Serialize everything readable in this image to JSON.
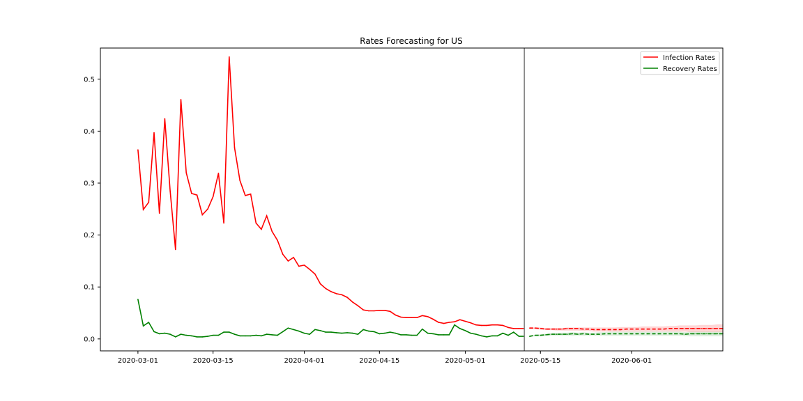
{
  "chart_data": {
    "type": "line",
    "title": "Rates Forecasting for US",
    "xlabel": "",
    "ylabel": "",
    "x_range": [
      "2020-02-23",
      "2020-06-18"
    ],
    "ylim": [
      -0.023,
      0.56
    ],
    "x_ticks": [
      "2020-03-01",
      "2020-03-15",
      "2020-04-01",
      "2020-04-15",
      "2020-05-01",
      "2020-05-15",
      "2020-06-01"
    ],
    "y_ticks": [
      0.0,
      0.1,
      0.2,
      0.3,
      0.4,
      0.5
    ],
    "y_tick_labels": [
      "0.0",
      "0.1",
      "0.2",
      "0.3",
      "0.4",
      "0.5"
    ],
    "grid": false,
    "legend_position": "top-right",
    "forecast_start_marker": "2020-05-12",
    "series": [
      {
        "name": "Infection Rates",
        "color": "#ff0000",
        "style": "solid",
        "start_date": "2020-03-01",
        "values": [
          0.364,
          0.249,
          0.263,
          0.397,
          0.242,
          0.424,
          0.285,
          0.172,
          0.461,
          0.32,
          0.28,
          0.277,
          0.239,
          0.25,
          0.274,
          0.319,
          0.223,
          0.543,
          0.368,
          0.305,
          0.276,
          0.279,
          0.223,
          0.211,
          0.237,
          0.207,
          0.19,
          0.163,
          0.15,
          0.157,
          0.14,
          0.142,
          0.134,
          0.125,
          0.106,
          0.097,
          0.091,
          0.087,
          0.085,
          0.08,
          0.071,
          0.064,
          0.056,
          0.054,
          0.054,
          0.055,
          0.055,
          0.053,
          0.046,
          0.042,
          0.041,
          0.041,
          0.041,
          0.045,
          0.043,
          0.038,
          0.032,
          0.03,
          0.032,
          0.033,
          0.037,
          0.034,
          0.031,
          0.027,
          0.026,
          0.026,
          0.027,
          0.027,
          0.026,
          0.022,
          0.02,
          0.02,
          0.02
        ]
      },
      {
        "name": "Recovery Rates",
        "color": "#008000",
        "style": "solid",
        "start_date": "2020-03-01",
        "values": [
          0.076,
          0.025,
          0.032,
          0.014,
          0.01,
          0.011,
          0.009,
          0.004,
          0.009,
          0.007,
          0.006,
          0.004,
          0.004,
          0.005,
          0.007,
          0.007,
          0.013,
          0.013,
          0.009,
          0.006,
          0.006,
          0.006,
          0.007,
          0.006,
          0.009,
          0.008,
          0.007,
          0.014,
          0.021,
          0.018,
          0.015,
          0.011,
          0.009,
          0.018,
          0.016,
          0.013,
          0.013,
          0.012,
          0.011,
          0.012,
          0.011,
          0.009,
          0.018,
          0.015,
          0.014,
          0.01,
          0.011,
          0.013,
          0.011,
          0.008,
          0.008,
          0.007,
          0.007,
          0.019,
          0.011,
          0.01,
          0.008,
          0.008,
          0.008,
          0.027,
          0.02,
          0.016,
          0.011,
          0.009,
          0.006,
          0.004,
          0.006,
          0.006,
          0.011,
          0.007,
          0.013,
          0.005,
          0.005
        ]
      },
      {
        "color": "#ff0000",
        "style": "dashed",
        "start_date": "2020-05-13",
        "values": [
          0.021,
          0.021,
          0.02,
          0.019,
          0.019,
          0.019,
          0.019,
          0.02,
          0.02,
          0.02,
          0.019,
          0.019,
          0.018,
          0.018,
          0.018,
          0.018,
          0.018,
          0.018,
          0.019,
          0.019,
          0.019,
          0.019,
          0.019,
          0.019,
          0.019,
          0.019,
          0.02,
          0.02,
          0.02,
          0.02,
          0.02,
          0.02,
          0.02,
          0.02,
          0.02,
          0.02,
          0.02
        ],
        "band_lower": [
          0.019,
          0.019,
          0.018,
          0.017,
          0.017,
          0.016,
          0.016,
          0.016,
          0.016,
          0.016,
          0.015,
          0.015,
          0.014,
          0.014,
          0.014,
          0.014,
          0.014,
          0.014,
          0.014,
          0.014,
          0.014,
          0.014,
          0.014,
          0.014,
          0.014,
          0.014,
          0.014,
          0.014,
          0.014,
          0.014,
          0.013,
          0.013,
          0.013,
          0.013,
          0.013,
          0.013,
          0.013
        ],
        "band_upper": [
          0.022,
          0.022,
          0.022,
          0.021,
          0.021,
          0.021,
          0.021,
          0.022,
          0.022,
          0.022,
          0.022,
          0.022,
          0.022,
          0.022,
          0.022,
          0.022,
          0.022,
          0.023,
          0.023,
          0.023,
          0.023,
          0.024,
          0.024,
          0.024,
          0.024,
          0.024,
          0.025,
          0.025,
          0.026,
          0.026,
          0.026,
          0.026,
          0.027,
          0.027,
          0.027,
          0.028,
          0.028
        ]
      },
      {
        "color": "#008000",
        "style": "dashed",
        "start_date": "2020-05-13",
        "values": [
          0.005,
          0.007,
          0.007,
          0.008,
          0.009,
          0.009,
          0.009,
          0.009,
          0.01,
          0.009,
          0.01,
          0.009,
          0.009,
          0.009,
          0.01,
          0.01,
          0.01,
          0.01,
          0.01,
          0.01,
          0.01,
          0.01,
          0.01,
          0.01,
          0.01,
          0.01,
          0.01,
          0.01,
          0.01,
          0.009,
          0.01,
          0.01,
          0.01,
          0.01,
          0.01,
          0.01,
          0.01
        ],
        "band_lower": [
          0.004,
          0.005,
          0.005,
          0.006,
          0.006,
          0.006,
          0.006,
          0.006,
          0.006,
          0.006,
          0.006,
          0.006,
          0.006,
          0.006,
          0.006,
          0.006,
          0.006,
          0.006,
          0.006,
          0.006,
          0.006,
          0.006,
          0.006,
          0.006,
          0.006,
          0.006,
          0.006,
          0.006,
          0.006,
          0.005,
          0.005,
          0.005,
          0.005,
          0.005,
          0.005,
          0.005,
          0.005
        ],
        "band_upper": [
          0.007,
          0.008,
          0.009,
          0.01,
          0.011,
          0.011,
          0.012,
          0.012,
          0.013,
          0.012,
          0.013,
          0.012,
          0.012,
          0.013,
          0.013,
          0.014,
          0.014,
          0.014,
          0.014,
          0.014,
          0.014,
          0.014,
          0.014,
          0.014,
          0.014,
          0.014,
          0.014,
          0.014,
          0.014,
          0.013,
          0.014,
          0.014,
          0.014,
          0.014,
          0.014,
          0.014,
          0.014
        ]
      }
    ]
  }
}
